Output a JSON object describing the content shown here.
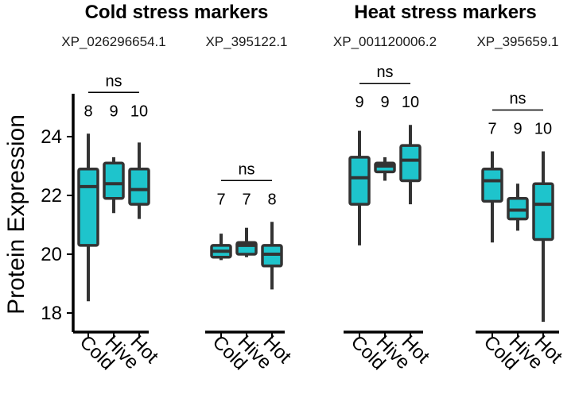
{
  "chart_data": {
    "type": "box",
    "ylabel": "Protein Expression",
    "ylim": [
      17.5,
      25.6
    ],
    "yticks": [
      18,
      20,
      22,
      24
    ],
    "groups": [
      {
        "title": "Cold stress markers",
        "panels": [
          0,
          1
        ]
      },
      {
        "title": "Heat stress markers",
        "panels": [
          2,
          3
        ]
      }
    ],
    "panels": [
      {
        "title": "XP_026296654.1",
        "significance": "ns",
        "boxes": [
          {
            "category": "Cold",
            "n": "8",
            "min": 18.4,
            "q1": 20.3,
            "median": 22.3,
            "q3": 22.9,
            "max": 24.1
          },
          {
            "category": "Hive",
            "n": "9",
            "min": 21.4,
            "q1": 21.9,
            "median": 22.4,
            "q3": 23.1,
            "max": 23.3
          },
          {
            "category": "Hot",
            "n": "10",
            "min": 21.2,
            "q1": 21.7,
            "median": 22.2,
            "q3": 22.9,
            "max": 23.8
          }
        ]
      },
      {
        "title": "XP_395122.1",
        "significance": "ns",
        "boxes": [
          {
            "category": "Cold",
            "n": "7",
            "min": 19.8,
            "q1": 19.9,
            "median": 20.1,
            "q3": 20.3,
            "max": 20.7
          },
          {
            "category": "Hive",
            "n": "7",
            "min": 19.9,
            "q1": 20.0,
            "median": 20.3,
            "q3": 20.4,
            "max": 20.9
          },
          {
            "category": "Hot",
            "n": "8",
            "min": 18.8,
            "q1": 19.6,
            "median": 20.0,
            "q3": 20.3,
            "max": 21.1
          }
        ]
      },
      {
        "title": "XP_001120006.2",
        "significance": "ns",
        "boxes": [
          {
            "category": "Cold",
            "n": "9",
            "min": 20.3,
            "q1": 21.7,
            "median": 22.6,
            "q3": 23.3,
            "max": 24.2
          },
          {
            "category": "Hive",
            "n": "9",
            "min": 22.5,
            "q1": 22.8,
            "median": 23.0,
            "q3": 23.1,
            "max": 23.3
          },
          {
            "category": "Hot",
            "n": "10",
            "min": 21.7,
            "q1": 22.5,
            "median": 23.2,
            "q3": 23.7,
            "max": 24.4
          }
        ]
      },
      {
        "title": "XP_395659.1",
        "significance": "ns",
        "boxes": [
          {
            "category": "Cold",
            "n": "7",
            "min": 20.4,
            "q1": 21.8,
            "median": 22.5,
            "q3": 22.9,
            "max": 23.5
          },
          {
            "category": "Hive",
            "n": "9",
            "min": 20.8,
            "q1": 21.2,
            "median": 21.5,
            "q3": 21.9,
            "max": 22.4
          },
          {
            "category": "Hot",
            "n": "10",
            "min": 17.7,
            "q1": 20.5,
            "median": 21.7,
            "q3": 22.4,
            "max": 23.5
          }
        ]
      }
    ]
  },
  "colors": {
    "box_fill": "#1ec4cc",
    "box_stroke": "#333333",
    "axis": "#000000"
  }
}
